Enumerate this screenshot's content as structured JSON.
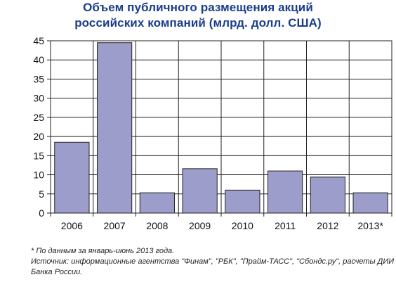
{
  "chart_data": {
    "type": "bar",
    "title_line1": "Объем публичного размещения акций",
    "title_line2": "российских компаний (млрд. долл. США)",
    "categories": [
      "2006",
      "2007",
      "2008",
      "2009",
      "2010",
      "2011",
      "2012",
      "2013*"
    ],
    "values": [
      18.5,
      44.5,
      5.3,
      11.6,
      6.0,
      11.0,
      9.4,
      5.3
    ],
    "ylim": [
      0,
      45
    ],
    "yticks": [
      0,
      5,
      10,
      15,
      20,
      25,
      30,
      35,
      40,
      45
    ],
    "grid": true,
    "bar_color": "#9d9dcc",
    "bar_edge_color": "#222222",
    "title_color": "#1a3d8a"
  },
  "notes": {
    "footnote": "* По данным за январь-июнь 2013 года.",
    "source_line1": "Источник: информационные агентства \"Финам\", \"РБК\", \"Прайм-ТАСС\", \"Cбондс.ру\", расчеты ДИИ",
    "source_line2": "Банка России."
  }
}
